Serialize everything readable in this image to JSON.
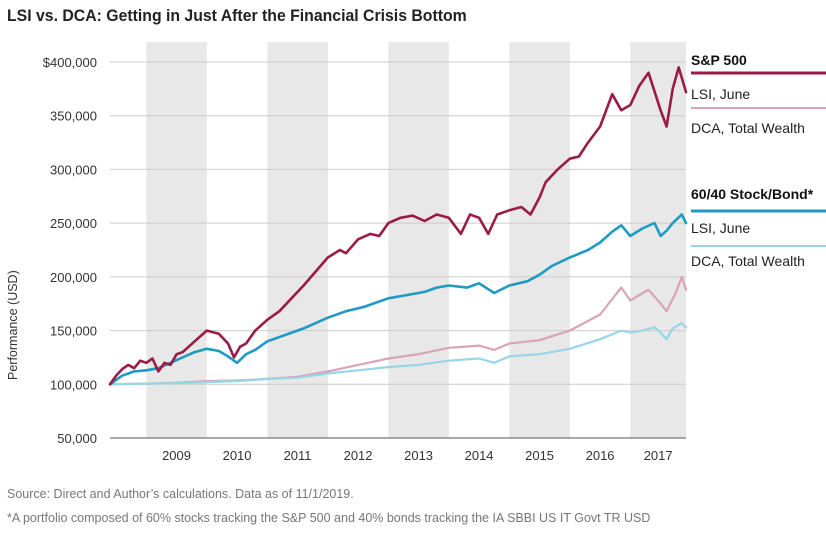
{
  "title": "LSI vs. DCA: Getting in Just After the Financial Crisis Bottom",
  "footer": {
    "source": "Source: Direct and Author’s calculations. Data as of 11/1/2019.",
    "note": "*A portfolio composed of 60% stocks tracking the S&P 500 and 40% bonds tracking the IA SBBI US IT Govt TR USD"
  },
  "colors": {
    "sp_lsi": "#9b1b45",
    "sp_dca": "#d9a3b8",
    "bond_lsi": "#1f9ac4",
    "bond_dca": "#96d6e6",
    "band": "#e8e8e8",
    "grid": "#cccccc"
  },
  "legend": {
    "sp_heading": "S&P 500",
    "sp_lsi": "LSI, June",
    "sp_dca": "DCA, Total Wealth",
    "bond_heading": "60/40 Stock/Bond*",
    "bond_lsi": "LSI, June",
    "bond_dca": "DCA, Total Wealth"
  },
  "chart_data": {
    "type": "line",
    "title": "LSI vs. DCA: Getting in Just After the Financial Crisis Bottom",
    "xlabel": "",
    "ylabel": "Performance (USD)",
    "x_tick_labels": [
      "2009",
      "2010",
      "2011",
      "2012",
      "2013",
      "2014",
      "2015",
      "2016",
      "2017"
    ],
    "y_tick_labels": [
      "$400,000",
      "350,000",
      "300,000",
      "250,000",
      "200,000",
      "150,000",
      "100,000",
      "50,000"
    ],
    "ylim": [
      50000,
      400000
    ],
    "xlim": [
      2008.4,
      2017.92
    ],
    "shaded_years": [
      2009,
      2011,
      2013,
      2015,
      2017
    ],
    "grid": "horizontal",
    "series": [
      {
        "name": "S&P 500 LSI, June",
        "x": [
          2008.4,
          2008.5,
          2008.6,
          2008.7,
          2008.8,
          2008.9,
          2009.0,
          2009.1,
          2009.2,
          2009.3,
          2009.4,
          2009.5,
          2009.6,
          2009.7,
          2009.8,
          2009.9,
          2010.0,
          2010.2,
          2010.35,
          2010.45,
          2010.55,
          2010.65,
          2010.8,
          2011.0,
          2011.2,
          2011.4,
          2011.6,
          2011.8,
          2012.0,
          2012.2,
          2012.3,
          2012.5,
          2012.7,
          2012.85,
          2013.0,
          2013.2,
          2013.4,
          2013.6,
          2013.8,
          2014.0,
          2014.2,
          2014.35,
          2014.5,
          2014.65,
          2014.8,
          2015.0,
          2015.2,
          2015.35,
          2015.5,
          2015.6,
          2015.8,
          2016.0,
          2016.15,
          2016.3,
          2016.5,
          2016.7,
          2016.85,
          2017.0,
          2017.15,
          2017.3,
          2017.5,
          2017.6,
          2017.7,
          2017.8,
          2017.92
        ],
        "y": [
          100000,
          108000,
          114000,
          118000,
          115000,
          122000,
          120000,
          124000,
          112000,
          120000,
          118000,
          128000,
          130000,
          135000,
          140000,
          145000,
          150000,
          147000,
          138000,
          125000,
          135000,
          138000,
          150000,
          160000,
          168000,
          180000,
          192000,
          205000,
          218000,
          225000,
          222000,
          235000,
          240000,
          238000,
          250000,
          255000,
          257000,
          252000,
          258000,
          255000,
          240000,
          258000,
          255000,
          240000,
          258000,
          262000,
          265000,
          258000,
          274000,
          288000,
          300000,
          310000,
          312000,
          325000,
          340000,
          370000,
          355000,
          360000,
          378000,
          390000,
          355000,
          340000,
          375000,
          395000,
          372000
        ]
      },
      {
        "name": "S&P 500 DCA, Total Wealth",
        "x": [
          2008.4,
          2009.0,
          2009.5,
          2010.0,
          2010.5,
          2011.0,
          2011.5,
          2012.0,
          2012.5,
          2013.0,
          2013.5,
          2014.0,
          2014.5,
          2014.75,
          2015.0,
          2015.5,
          2016.0,
          2016.5,
          2016.85,
          2017.0,
          2017.3,
          2017.5,
          2017.6,
          2017.75,
          2017.85,
          2017.92
        ],
        "y": [
          100000,
          100500,
          101500,
          103000,
          103500,
          105000,
          107000,
          112000,
          118000,
          124000,
          128000,
          134000,
          136000,
          132000,
          138000,
          141000,
          150000,
          165000,
          190000,
          178000,
          188000,
          175000,
          168000,
          185000,
          200000,
          188000
        ]
      },
      {
        "name": "60/40 Stock/Bond LSI, June",
        "x": [
          2008.4,
          2008.6,
          2008.8,
          2009.0,
          2009.2,
          2009.4,
          2009.6,
          2009.8,
          2010.0,
          2010.2,
          2010.35,
          2010.5,
          2010.65,
          2010.8,
          2011.0,
          2011.3,
          2011.6,
          2012.0,
          2012.3,
          2012.6,
          2013.0,
          2013.3,
          2013.6,
          2013.8,
          2014.0,
          2014.3,
          2014.5,
          2014.75,
          2015.0,
          2015.3,
          2015.5,
          2015.7,
          2016.0,
          2016.3,
          2016.5,
          2016.7,
          2016.85,
          2017.0,
          2017.2,
          2017.4,
          2017.5,
          2017.6,
          2017.7,
          2017.85,
          2017.92
        ],
        "y": [
          100000,
          108000,
          112000,
          113000,
          115000,
          120000,
          125000,
          130000,
          133000,
          131000,
          126000,
          120000,
          128000,
          132000,
          140000,
          146000,
          152000,
          162000,
          168000,
          172000,
          180000,
          183000,
          186000,
          190000,
          192000,
          190000,
          194000,
          185000,
          192000,
          196000,
          202000,
          210000,
          218000,
          225000,
          232000,
          242000,
          248000,
          238000,
          245000,
          250000,
          238000,
          243000,
          250000,
          258000,
          250000
        ]
      },
      {
        "name": "60/40 Stock/Bond DCA, Total Wealth",
        "x": [
          2008.4,
          2009.0,
          2009.5,
          2010.0,
          2010.5,
          2011.0,
          2011.5,
          2012.0,
          2012.5,
          2013.0,
          2013.5,
          2014.0,
          2014.5,
          2014.75,
          2015.0,
          2015.5,
          2016.0,
          2016.5,
          2016.85,
          2017.0,
          2017.2,
          2017.4,
          2017.5,
          2017.6,
          2017.7,
          2017.85,
          2017.92
        ],
        "y": [
          100000,
          100500,
          101000,
          102000,
          103000,
          105000,
          106000,
          110000,
          113000,
          116000,
          118000,
          122000,
          124000,
          120000,
          126000,
          128000,
          133000,
          142000,
          150000,
          148000,
          150000,
          153000,
          148000,
          142000,
          152000,
          157000,
          153000
        ]
      }
    ]
  }
}
